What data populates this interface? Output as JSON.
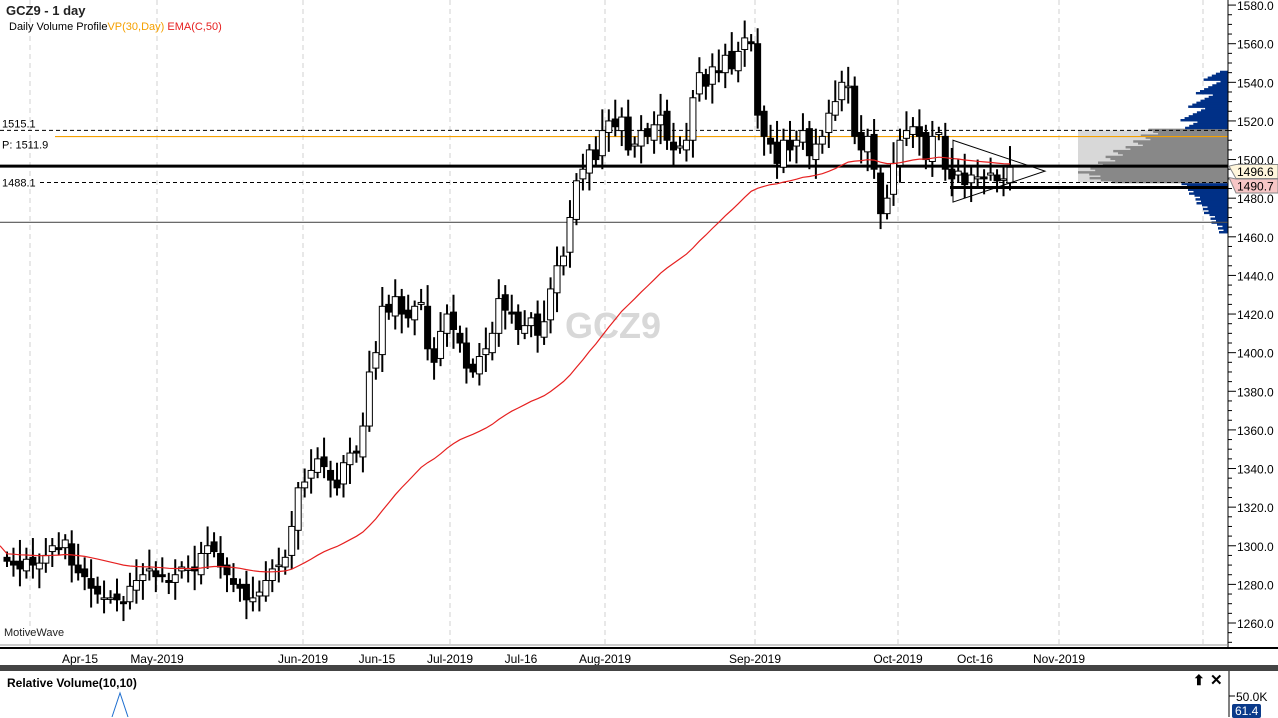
{
  "header": {
    "title": "GCZ9 - 1 day",
    "study_label": "Daily Volume Profile",
    "vp_label": "VP(30,Day)",
    "ema_label": "EMA(C,50)",
    "watermark": "GCZ9",
    "brand": "MotiveWave"
  },
  "levels": {
    "upper_dashed": "1515.1",
    "poc": "P: 1511.9",
    "lower_dashed": "1488.1",
    "last_price": "1496.6",
    "bid_price": "1490.7"
  },
  "colors": {
    "ema": "#e62020",
    "poc": "#f5a000",
    "profile_blue": "#003087",
    "profile_gray": "#888888",
    "profile_light": "#d8d8d8"
  },
  "x_labels": [
    "Apr-15",
    "May-2019",
    "Jun-2019",
    "Jun-15",
    "Jul-2019",
    "Jul-16",
    "Aug-2019",
    "Sep-2019",
    "Oct-2019",
    "Oct-16",
    "Nov-2019"
  ],
  "lower_panel": {
    "title": "Relative Volume(10,10)",
    "axis_label": "50.0K",
    "value_label": "61.4"
  },
  "chart_data": {
    "type": "candlestick",
    "title": "GCZ9 - 1 day",
    "ylim": [
      1250,
      1585
    ],
    "y_ticks": [
      1260,
      1280,
      1300,
      1320,
      1340,
      1360,
      1380,
      1400,
      1420,
      1440,
      1460,
      1480,
      1500,
      1520,
      1540,
      1560,
      1580
    ],
    "close": [
      1292,
      1290,
      1288,
      1293,
      1290,
      1291,
      1295,
      1300,
      1298,
      1303,
      1290,
      1286,
      1284,
      1278,
      1275,
      1273,
      1273,
      1272,
      1270,
      1279,
      1282,
      1285,
      1288,
      1284,
      1284,
      1281,
      1285,
      1289,
      1288,
      1287,
      1296,
      1300,
      1297,
      1289,
      1285,
      1280,
      1278,
      1272,
      1273,
      1276,
      1282,
      1288,
      1290,
      1294,
      1310,
      1330,
      1333,
      1339,
      1345,
      1341,
      1334,
      1330,
      1343,
      1348,
      1348,
      1362,
      1390,
      1400,
      1424,
      1421,
      1429,
      1420,
      1418,
      1424,
      1426,
      1402,
      1395,
      1411,
      1420,
      1412,
      1405,
      1392,
      1390,
      1398,
      1402,
      1410,
      1428,
      1422,
      1420,
      1412,
      1414,
      1418,
      1409,
      1416,
      1433,
      1445,
      1450,
      1470,
      1489,
      1495,
      1505,
      1500,
      1515,
      1520,
      1517,
      1522,
      1505,
      1508,
      1515,
      1512,
      1518,
      1523,
      1510,
      1505,
      1507,
      1510,
      1532,
      1545,
      1538,
      1548,
      1545,
      1554,
      1547,
      1556,
      1563,
      1560,
      1523,
      1512,
      1508,
      1498,
      1510,
      1505,
      1510,
      1515,
      1502,
      1508,
      1512,
      1524,
      1530,
      1540,
      1538,
      1512,
      1505,
      1512,
      1495,
      1472,
      1480,
      1498,
      1510,
      1515,
      1517,
      1512,
      1500,
      1512,
      1514,
      1495,
      1490,
      1494,
      1487,
      1492,
      1491,
      1490,
      1493,
      1489,
      1490,
      1496
    ],
    "ema_period": 50,
    "horizontal_levels": [
      1515.1,
      1511.9,
      1496.6,
      1488.1,
      1467.5
    ]
  }
}
